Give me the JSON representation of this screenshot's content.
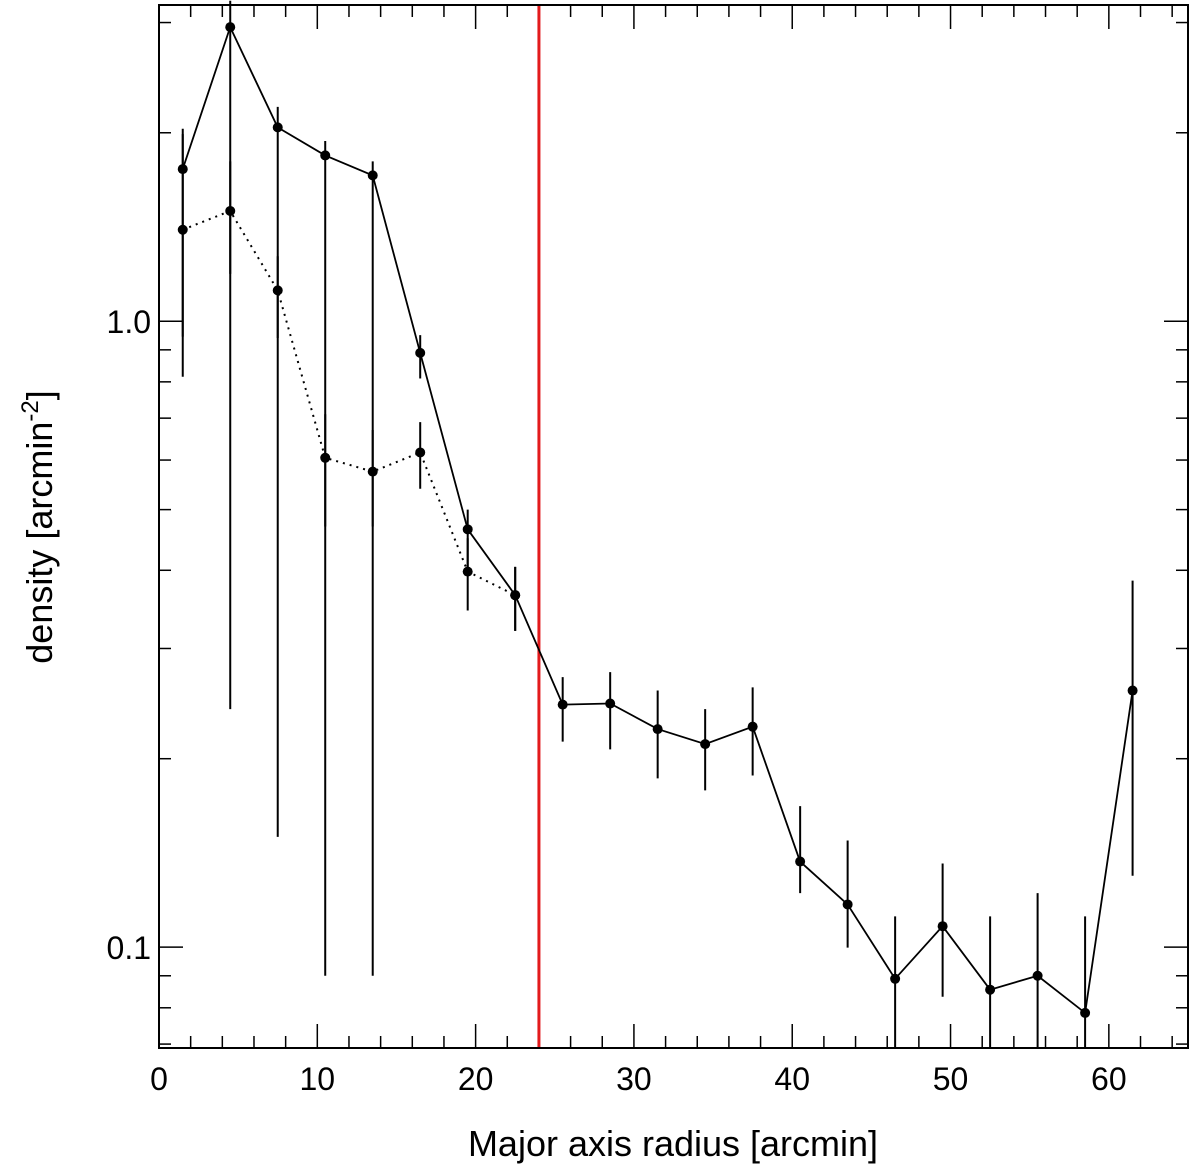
{
  "chart_data": {
    "type": "line",
    "title": "",
    "xlabel": "Major axis radius [arcmin]",
    "ylabel": {
      "main": "density [arcmin",
      "sup": "-2",
      "close": "]"
    },
    "xlim": [
      0,
      65
    ],
    "ylim": [
      0.069,
      3.2
    ],
    "yscale": "log",
    "xticks": [
      "0",
      "10",
      "20",
      "30",
      "40",
      "50",
      "60"
    ],
    "yticks": [
      "0.1",
      "1.0"
    ],
    "vline": {
      "x": 24,
      "color": "#e31a1c"
    },
    "series": [
      {
        "style": "solid",
        "x": [
          1.5,
          4.5,
          7.5,
          10.5,
          13.5,
          16.5,
          19.5,
          22.5,
          25.5,
          28.5,
          31.5,
          34.5,
          37.5,
          40.5,
          43.5,
          46.5,
          49.5,
          52.5,
          55.5,
          58.5,
          61.5
        ],
        "y": [
          1.75,
          2.95,
          2.04,
          1.84,
          1.71,
          0.89,
          0.465,
          0.365,
          0.244,
          0.245,
          0.223,
          0.211,
          0.225,
          0.137,
          0.117,
          0.089,
          0.108,
          0.0855,
          0.09,
          0.0785,
          0.257
        ],
        "yerr_low": [
          0.815,
          0.24,
          0.15,
          0.09,
          0.09,
          0.81,
          0.405,
          0.32,
          0.213,
          0.207,
          0.186,
          0.178,
          0.188,
          0.122,
          0.0998,
          0.0662,
          0.0833,
          0.0662,
          0.0662,
          0.0662,
          0.13
        ],
        "yerr_high": [
          2.03,
          3.25,
          2.2,
          1.94,
          1.8,
          0.95,
          0.5,
          0.405,
          0.27,
          0.275,
          0.257,
          0.24,
          0.26,
          0.168,
          0.148,
          0.112,
          0.136,
          0.112,
          0.122,
          0.112,
          0.385
        ]
      },
      {
        "style": "dotted",
        "x": [
          1.5,
          4.5,
          7.5,
          10.5,
          13.5,
          16.5,
          19.5,
          22.5
        ],
        "y": [
          1.4,
          1.5,
          1.12,
          0.605,
          0.575,
          0.617,
          0.398,
          0.365
        ],
        "yerr_low": [
          0.945,
          1.19,
          0.94,
          0.47,
          0.47,
          0.54,
          0.345,
          0.32
        ],
        "yerr_high": [
          1.99,
          1.8,
          1.27,
          0.71,
          0.67,
          0.69,
          0.45,
          0.405
        ]
      }
    ]
  }
}
